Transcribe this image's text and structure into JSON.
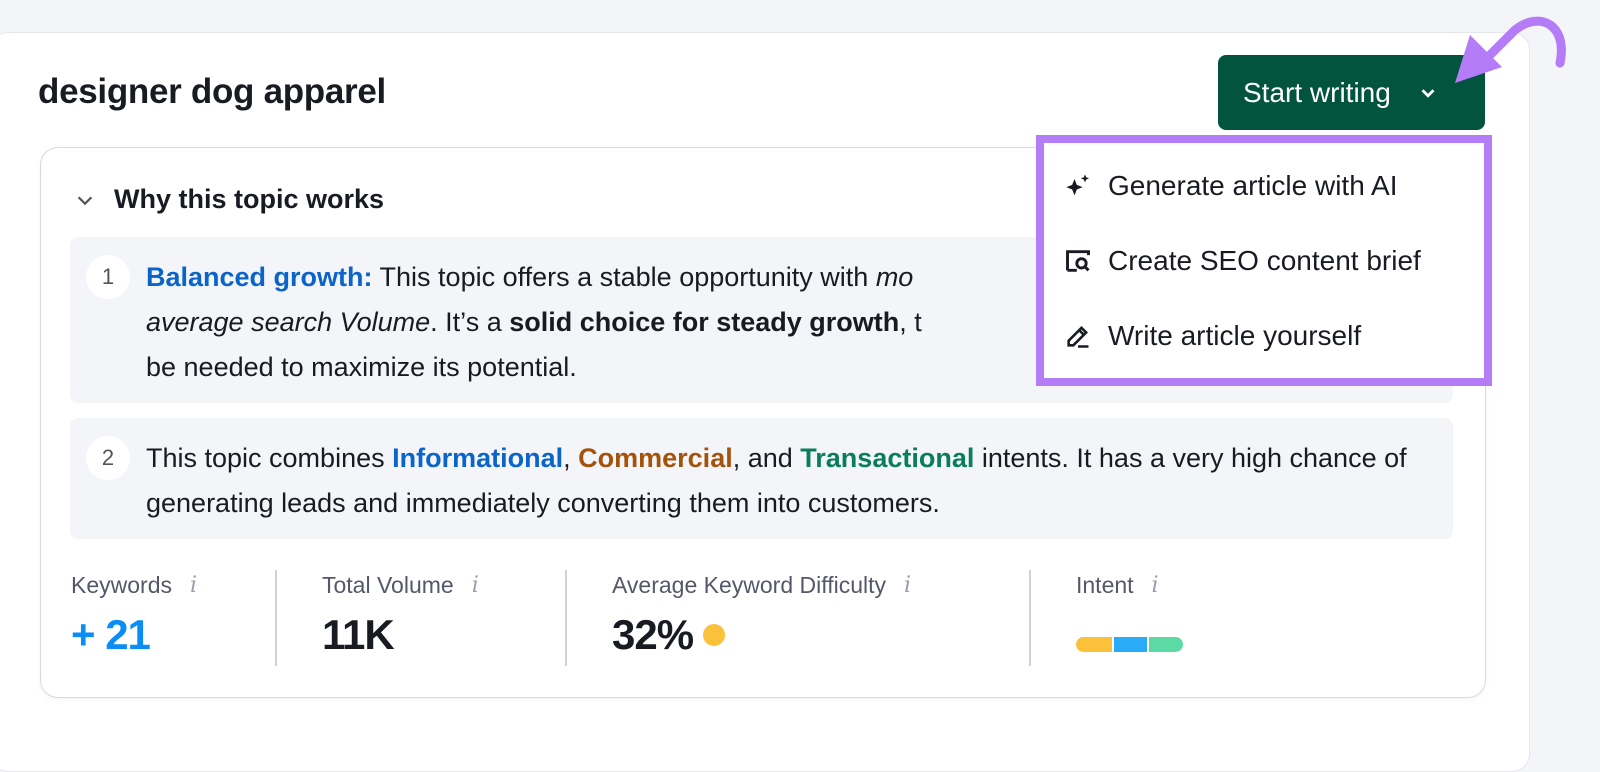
{
  "topic_title": "designer dog apparel",
  "start_button": {
    "label": "Start writing"
  },
  "menu": [
    {
      "label": "Generate article with AI",
      "icon": "sparkles-icon"
    },
    {
      "label": "Create SEO content brief",
      "icon": "brief-search-icon"
    },
    {
      "label": "Write article yourself",
      "icon": "pencil-icon"
    }
  ],
  "section": {
    "title": "Why this topic works"
  },
  "reasons": [
    {
      "num": "1",
      "lead": "Balanced growth:",
      "t1": " This topic offers a stable opportunity with ",
      "t1i": "mo",
      "l2i": "average search Volume",
      "t2": ". It’s a ",
      "t2b": "solid choice for steady growth",
      "t3": ", t",
      "l3": "be needed to maximize its potential."
    },
    {
      "num": "2",
      "a": "This topic combines ",
      "b": "Informational",
      "c": ", ",
      "d": "Commercial",
      "e": ", and ",
      "f": "Transactional",
      "g": " intents. It has a very high chance of generating leads and immediately converting them into customers."
    }
  ],
  "stats": {
    "keywords": {
      "label": "Keywords",
      "value": "+ 21"
    },
    "volume": {
      "label": "Total Volume",
      "value": "11K"
    },
    "difficulty": {
      "label": "Average Keyword Difficulty",
      "value": "32%",
      "color": "#fcc13b"
    },
    "intent": {
      "label": "Intent",
      "colors": [
        "#fcc13b",
        "#2aabf7",
        "#5bdaa6"
      ]
    }
  },
  "info_glyph": "i",
  "colors": {
    "button": "#03543f",
    "highlight": "#b57cf7"
  }
}
